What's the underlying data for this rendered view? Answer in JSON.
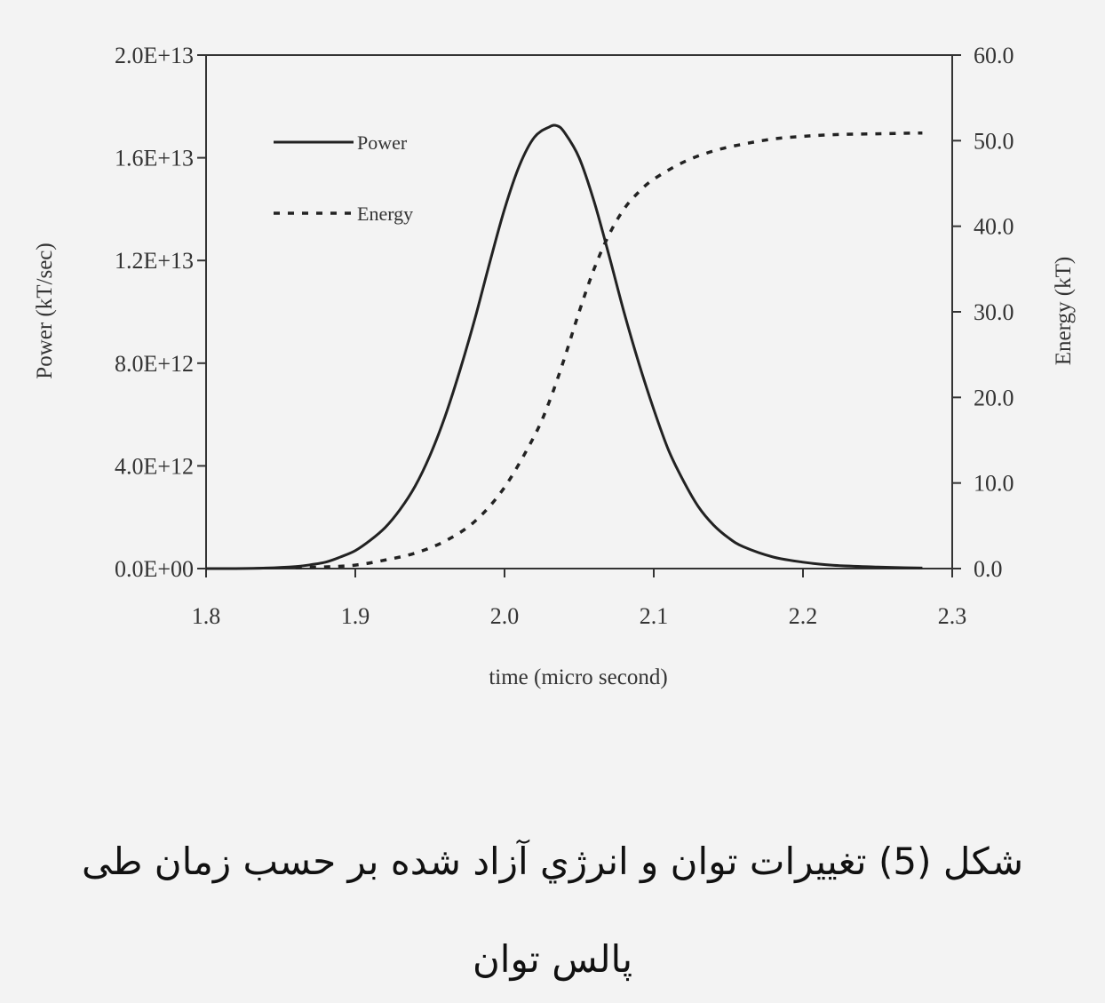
{
  "chart_data": {
    "type": "line",
    "title": "",
    "xlabel": "time (micro second)",
    "ylabel_left": "Power (kT/sec)",
    "ylabel_right": "Energy (kT)",
    "xlim": [
      1.8,
      2.3
    ],
    "ylim_left": [
      0,
      20000000000000.0
    ],
    "ylim_right": [
      0,
      60
    ],
    "x_ticks": [
      "1.8",
      "1.9",
      "2.0",
      "2.1",
      "2.2",
      "2.3"
    ],
    "x_tick_values": [
      1.8,
      1.9,
      2.0,
      2.1,
      2.2,
      2.3
    ],
    "y_left_ticks": [
      "0.0E+00",
      "4.0E+12",
      "8.0E+12",
      "1.2E+13",
      "1.6E+13",
      "2.0E+13"
    ],
    "y_left_tick_values": [
      0,
      4000000000000.0,
      8000000000000.0,
      12000000000000.0,
      16000000000000.0,
      20000000000000.0
    ],
    "y_right_ticks": [
      "0.0",
      "10.0",
      "20.0",
      "30.0",
      "40.0",
      "50.0",
      "60.0"
    ],
    "y_right_tick_values": [
      0,
      10,
      20,
      30,
      40,
      50,
      60
    ],
    "grid": false,
    "legend_position": "top-left",
    "series": [
      {
        "name": "Power",
        "axis": "left",
        "style": "solid",
        "x": [
          1.8,
          1.82,
          1.84,
          1.86,
          1.87,
          1.88,
          1.89,
          1.9,
          1.91,
          1.92,
          1.93,
          1.94,
          1.95,
          1.96,
          1.97,
          1.98,
          1.99,
          2.0,
          2.01,
          2.02,
          2.03,
          2.035,
          2.04,
          2.05,
          2.06,
          2.07,
          2.08,
          2.09,
          2.1,
          2.11,
          2.12,
          2.13,
          2.14,
          2.15,
          2.16,
          2.18,
          2.2,
          2.22,
          2.25,
          2.28
        ],
        "values": [
          0,
          0,
          20000000000.0,
          80000000000.0,
          150000000000.0,
          250000000000.0,
          450000000000.0,
          700000000000.0,
          1100000000000.0,
          1600000000000.0,
          2300000000000.0,
          3200000000000.0,
          4400000000000.0,
          5900000000000.0,
          7700000000000.0,
          9700000000000.0,
          11900000000000.0,
          14000000000000.0,
          15700000000000.0,
          16800000000000.0,
          17200000000000.0,
          17250000000000.0,
          17000000000000.0,
          16000000000000.0,
          14300000000000.0,
          12200000000000.0,
          10000000000000.0,
          8000000000000.0,
          6200000000000.0,
          4600000000000.0,
          3400000000000.0,
          2400000000000.0,
          1700000000000.0,
          1200000000000.0,
          850000000000.0,
          450000000000.0,
          250000000000.0,
          130000000000.0,
          60000000000.0,
          20000000000.0
        ]
      },
      {
        "name": "Energy",
        "axis": "right",
        "style": "dotted",
        "x": [
          1.86,
          1.88,
          1.9,
          1.92,
          1.94,
          1.96,
          1.98,
          2.0,
          2.02,
          2.03,
          2.04,
          2.05,
          2.06,
          2.07,
          2.08,
          2.09,
          2.1,
          2.12,
          2.14,
          2.16,
          2.18,
          2.2,
          2.22,
          2.25,
          2.28
        ],
        "values": [
          0.1,
          0.2,
          0.4,
          1.0,
          1.8,
          3.2,
          5.5,
          9.5,
          15.5,
          19.5,
          24.5,
          30.0,
          35.0,
          39.0,
          42.0,
          44.0,
          45.5,
          47.5,
          48.8,
          49.6,
          50.2,
          50.5,
          50.7,
          50.8,
          50.9
        ]
      }
    ]
  },
  "caption": {
    "line1": "شکل (5) تغييرات توان و انرژي آزاد شده بر حسب زمان طی",
    "line2": "پالس توان"
  }
}
